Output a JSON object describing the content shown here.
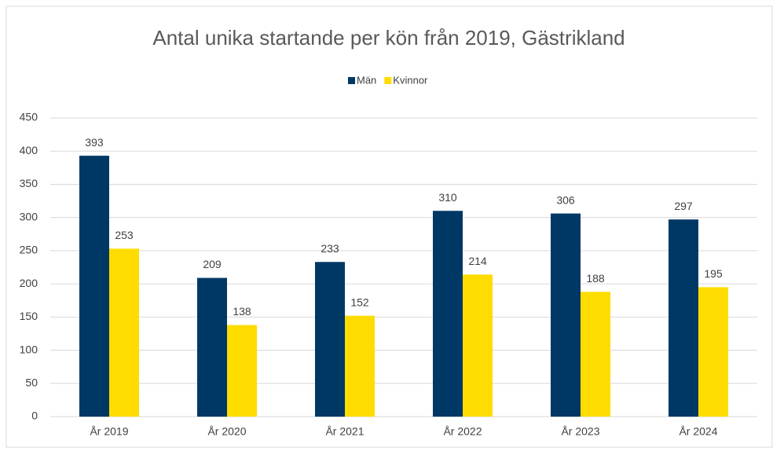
{
  "chart_data": {
    "type": "bar",
    "title": "Antal unika startande per kön från 2019, Gästrikland",
    "categories": [
      "År 2019",
      "År 2020",
      "År 2021",
      "År 2022",
      "År 2023",
      "År 2024"
    ],
    "series": [
      {
        "name": "Män",
        "color": "#003865",
        "values": [
          393,
          209,
          233,
          310,
          306,
          297
        ]
      },
      {
        "name": "Kvinnor",
        "color": "#ffdc00",
        "values": [
          253,
          138,
          152,
          214,
          188,
          195
        ]
      }
    ],
    "ylim": [
      0,
      450
    ],
    "yticks": [
      0,
      50,
      100,
      150,
      200,
      250,
      300,
      350,
      400,
      450
    ],
    "grid": true,
    "legend": "top"
  }
}
